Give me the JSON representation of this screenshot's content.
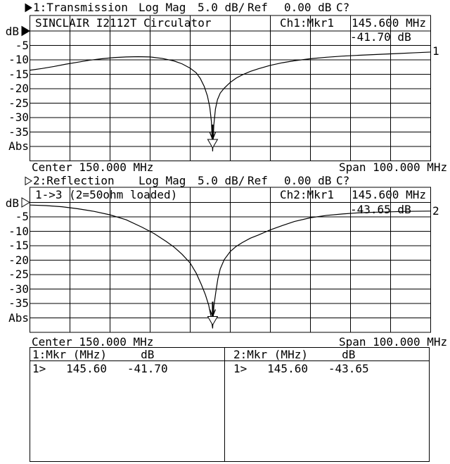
{
  "window": {
    "bg": "#ffffff",
    "fg": "#000000"
  },
  "chart1": {
    "header": {
      "num_label": "1:Transmission",
      "format": "Log Mag",
      "scale": "5.0 dB/",
      "ref": "Ref",
      "ref_value": "0.00 dB",
      "cal": "C?",
      "active_triangle": "filled"
    },
    "title": "SINCLAIR I2112T Circulator",
    "readout_channel": "Ch1:Mkr1",
    "readout_freq": "145.600 MHz",
    "readout_value": "-41.70 dB",
    "trace_label": "1",
    "axis_unit": "dB",
    "axis_ticks": [
      "-5",
      "-10",
      "-15",
      "-20",
      "-25",
      "-30",
      "-35"
    ],
    "axis_abs": "Abs",
    "center": "Center 150.000 MHz",
    "span": "Span 100.000 MHz"
  },
  "chart2": {
    "header": {
      "num_label": "2:Reflection",
      "format": "Log Mag",
      "scale": "5.0 dB/",
      "ref": "Ref",
      "ref_value": "0.00 dB",
      "cal": "C?",
      "active_triangle": "hollow"
    },
    "title": "1->3 (2=50ohm loaded)",
    "readout_channel": "Ch2:Mkr1",
    "readout_freq": "145.600 MHz",
    "readout_value": "-43.65 dB",
    "trace_label": "2",
    "axis_unit": "dB",
    "axis_ticks": [
      "-5",
      "-10",
      "-15",
      "-20",
      "-25",
      "-30",
      "-35"
    ],
    "axis_abs": "Abs",
    "center": "Center 150.000 MHz",
    "span": "Span 100.000 MHz"
  },
  "marker_table": {
    "left_header": "1:Mkr (MHz)     dB",
    "left_row": "1>   145.60   -41.70",
    "right_header": "2:Mkr (MHz)     dB",
    "right_row": "1>   145.60   -43.65"
  },
  "chart_data": [
    {
      "type": "line",
      "title": "1:Transmission  Log Mag  5.0 dB/  Ref 0.00 dB",
      "device": "SINCLAIR I2112T Circulator",
      "center_mhz": 150.0,
      "span_mhz": 100.0,
      "xlim_mhz": [
        100,
        200
      ],
      "ref_db": 0,
      "db_per_div": 5,
      "ylim_db": [
        0,
        -45
      ],
      "grid": "on",
      "marker": {
        "name": "Mkr1",
        "x_mhz": 145.6,
        "y_db": -41.7
      },
      "x_mhz": [
        100,
        103,
        106,
        109,
        112,
        115,
        118,
        121,
        124,
        127,
        130,
        133,
        136,
        138,
        140,
        141.5,
        142.5,
        143.5,
        144.3,
        144.9,
        145.3,
        145.6,
        145.9,
        146.3,
        146.8,
        147.5,
        148.5,
        150,
        151.5,
        153,
        155,
        157,
        160,
        163,
        166,
        170,
        174,
        178,
        183,
        188,
        192,
        196,
        200
      ],
      "y_db": [
        -13.6,
        -13.0,
        -12.3,
        -11.5,
        -10.8,
        -10.1,
        -9.6,
        -9.2,
        -9.0,
        -8.9,
        -9.0,
        -9.5,
        -10.4,
        -11.4,
        -12.9,
        -14.5,
        -16.4,
        -19.2,
        -22.5,
        -26.5,
        -31.5,
        -41.7,
        -32.5,
        -27.0,
        -23.8,
        -21.5,
        -19.8,
        -17.8,
        -16.3,
        -15.2,
        -14.0,
        -13.1,
        -11.9,
        -11.0,
        -10.3,
        -9.6,
        -9.1,
        -8.7,
        -8.35,
        -8.05,
        -7.8,
        -7.55,
        -7.3
      ]
    },
    {
      "type": "line",
      "title": "2:Reflection  Log Mag  5.0 dB/  Ref 0.00 dB",
      "device": "1->3 (2=50ohm loaded)",
      "center_mhz": 150.0,
      "span_mhz": 100.0,
      "xlim_mhz": [
        100,
        200
      ],
      "ref_db": 0,
      "db_per_div": 5,
      "ylim_db": [
        0,
        -45
      ],
      "grid": "on",
      "marker": {
        "name": "Mkr1",
        "x_mhz": 145.6,
        "y_db": -43.65
      },
      "x_mhz": [
        100,
        104,
        108,
        112,
        116,
        120,
        124,
        128,
        131,
        134,
        136,
        138,
        140,
        141.5,
        142.8,
        143.8,
        144.6,
        145.2,
        145.6,
        145.9,
        146.4,
        146.9,
        147.5,
        148.5,
        150,
        151.5,
        153,
        155,
        157,
        160,
        163,
        166,
        170,
        174,
        178,
        182,
        186,
        190,
        194,
        200
      ],
      "y_db": [
        -0.9,
        -1.1,
        -1.5,
        -2.2,
        -3.1,
        -4.3,
        -6.0,
        -8.6,
        -10.8,
        -13.5,
        -15.5,
        -18.0,
        -21.0,
        -24.5,
        -28.5,
        -32.0,
        -35.5,
        -39.5,
        -43.65,
        -36.0,
        -31.0,
        -26.5,
        -23.0,
        -19.8,
        -17.0,
        -15.2,
        -13.9,
        -12.4,
        -11.3,
        -9.5,
        -8.0,
        -6.6,
        -5.3,
        -4.5,
        -4.0,
        -3.6,
        -3.4,
        -3.25,
        -3.1,
        -3.0
      ]
    }
  ]
}
